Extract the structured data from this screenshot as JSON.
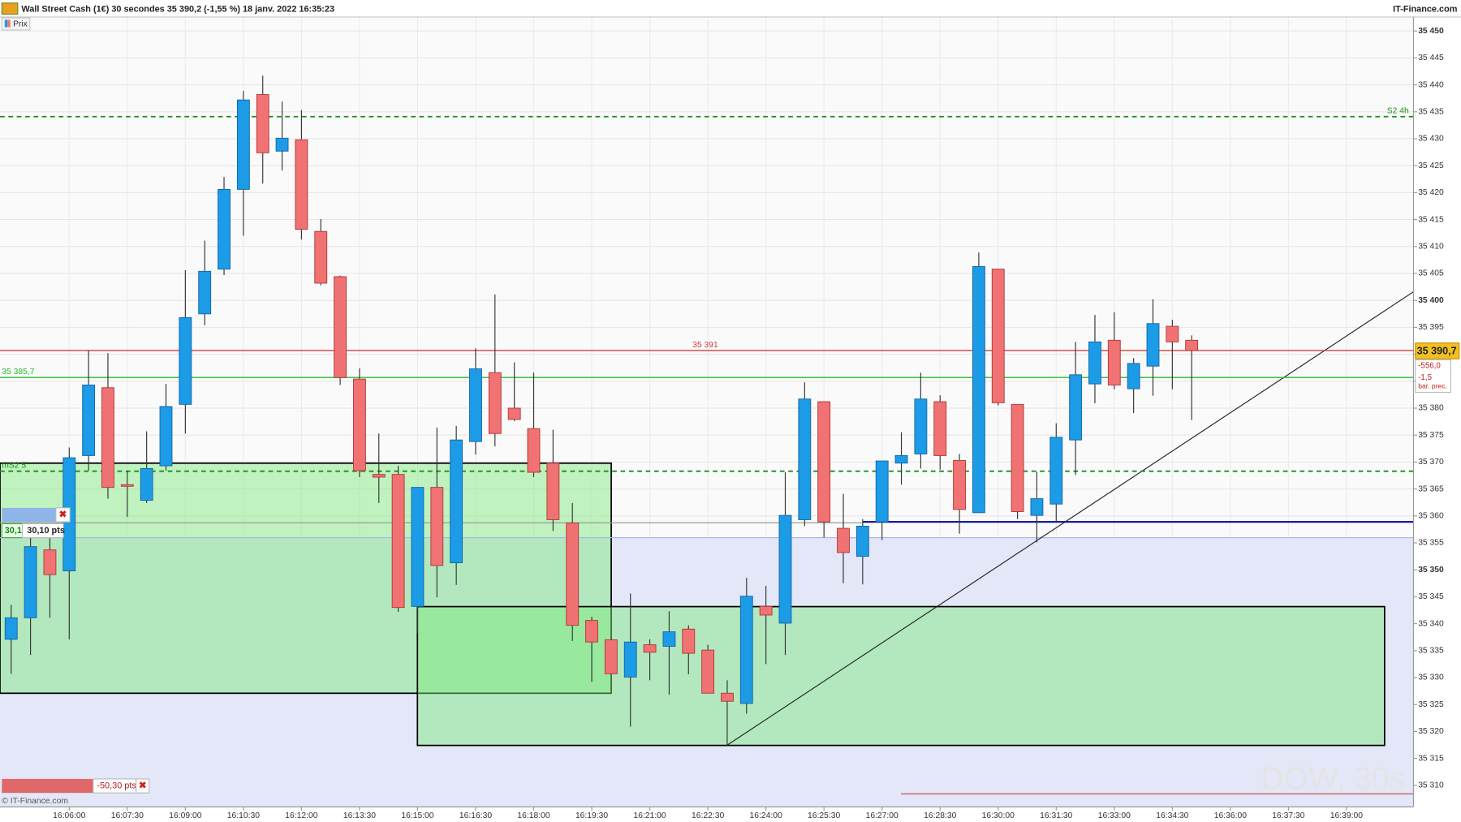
{
  "chart_data": {
    "type": "candlestick",
    "title": "Wall Street Cash (1€) 30 secondes 35 390,2 (-1,55 %) 18 janv. 2022 16:35:23",
    "source": "IT-Finance.com",
    "legend": "Prix",
    "copyright": "© IT-Finance.com",
    "watermark": "DOW, 30s",
    "up_color": "#1c9be6",
    "down_color": "#f07272",
    "grid": true,
    "categories": [
      null,
      null,
      null,
      "16:06:00",
      null,
      null,
      "16:07:30",
      null,
      null,
      "16:09:00",
      null,
      null,
      "16:10:30",
      null,
      null,
      "16:12:00",
      null,
      null,
      "16:13:30",
      null,
      null,
      "16:15:00",
      null,
      null,
      "16:16:30",
      null,
      null,
      "16:18:00",
      null,
      null,
      "16:19:30",
      null,
      null,
      "16:21:00",
      null,
      null,
      "16:22:30",
      null,
      null,
      "16:24:00",
      null,
      null,
      "16:25:30",
      null,
      null,
      "16:27:00",
      null,
      null,
      "16:28:30",
      null,
      null,
      "16:30:00",
      null,
      null,
      "16:31:30",
      null,
      null,
      "16:33:00",
      null,
      null,
      "16:34:30",
      null,
      null,
      "16:36:00",
      null,
      null,
      "16:37:30",
      null,
      null,
      "16:39:00",
      null,
      null,
      null
    ],
    "open": [
      35337.1,
      35341.1,
      35353.7,
      35349.8,
      35371.2,
      35383.8,
      35365.8,
      35362.9,
      35369.3,
      35380.7,
      35397.5,
      35405.8,
      35420.6,
      35438.2,
      35427.7,
      35429.8,
      35412.8,
      35404.4,
      35385.4,
      35367.7,
      35367.7,
      35343.2,
      35365.3,
      35351.3,
      35373.8,
      35386.6,
      35380.0,
      35376.2,
      35369.8,
      35358.7,
      35340.6,
      35337.0,
      35330.1,
      35336.1,
      35335.8,
      35339.0,
      35335.1,
      35327.1,
      35325.2,
      35343.2,
      35340.1,
      35359.3,
      35381.2,
      35357.7,
      35352.5,
      35358.9,
      35369.8,
      35371.5,
      35381.2,
      35370.3,
      35360.6,
      35405.8,
      35380.7,
      35360.1,
      35362.2,
      35374.1,
      35384.5,
      35392.6,
      35383.6,
      35387.8,
      35395.2,
      35392.6,
      null,
      null,
      null,
      null,
      null,
      null,
      null,
      null,
      null,
      null,
      null
    ],
    "high": [
      35343.5,
      35356.3,
      35357.2,
      35372.7,
      35390.7,
      35390.2,
      35368.4,
      35375.7,
      35384.5,
      35405.6,
      35411.1,
      35422.9,
      35438.9,
      35441.7,
      35436.9,
      35435.3,
      35415.1,
      35404.6,
      35387.4,
      35375.3,
      35369.3,
      35365.3,
      35376.4,
      35376.7,
      35391.1,
      35401.1,
      35388.5,
      35386.6,
      35376.0,
      35362.4,
      35341.3,
      35337.3,
      35345.6,
      35337.1,
      35342.3,
      35339.7,
      35336.1,
      35329.5,
      35348.5,
      35347.0,
      35368.1,
      35384.8,
      35381.2,
      35364.1,
      35359.4,
      35370.2,
      35375.5,
      35386.6,
      35382.4,
      35371.5,
      35408.9,
      35405.8,
      35380.7,
      35368.2,
      35377.2,
      35392.3,
      35397.3,
      35397.8,
      35389.3,
      35400.2,
      35396.4,
      35393.5,
      null,
      null,
      null,
      null,
      null,
      null,
      null,
      null,
      null,
      null,
      null
    ],
    "low": [
      35330.7,
      35334.2,
      35341.1,
      35337.1,
      35368.4,
      35363.2,
      35359.8,
      35362.4,
      35368.4,
      35375.3,
      35395.4,
      35404.7,
      35412.0,
      35421.7,
      35424.1,
      35411.3,
      35402.8,
      35384.3,
      35367.2,
      35362.4,
      35342.2,
      35338.2,
      35344.9,
      35347.2,
      35371.4,
      35372.9,
      35377.6,
      35367.2,
      35357.2,
      35336.8,
      35329.2,
      35330.7,
      35320.9,
      35329.5,
      35326.8,
      35330.6,
      35327.1,
      35317.4,
      35323.3,
      35332.5,
      35334.2,
      35358.1,
      35356.0,
      35347.5,
      35347.3,
      35355.5,
      35365.8,
      35368.8,
      35368.6,
      35356.7,
      35360.6,
      35380.5,
      35359.4,
      35355.1,
      35358.9,
      35367.6,
      35380.9,
      35383.5,
      35379.1,
      35382.3,
      35383.5,
      35377.8,
      null,
      null,
      null,
      null,
      null,
      null,
      null,
      null,
      null,
      null,
      null
    ],
    "close": [
      35341.1,
      35354.3,
      35349.1,
      35370.8,
      35384.3,
      35365.3,
      35365.5,
      35368.8,
      35380.3,
      35396.8,
      35405.4,
      35420.6,
      35437.2,
      35427.4,
      35430.1,
      35413.2,
      35403.2,
      35385.7,
      35368.4,
      35367.2,
      35343.0,
      35365.3,
      35350.8,
      35374.1,
      35387.3,
      35375.3,
      35377.9,
      35368.1,
      35359.3,
      35339.7,
      35336.6,
      35330.7,
      35336.6,
      35334.7,
      35338.5,
      35334.5,
      35327.1,
      35325.6,
      35345.1,
      35341.6,
      35360.1,
      35381.7,
      35358.9,
      35353.2,
      35358.1,
      35370.2,
      35371.2,
      35381.7,
      35371.2,
      35361.2,
      35406.3,
      35381.0,
      35360.8,
      35363.2,
      35374.6,
      35386.2,
      35392.3,
      35384.3,
      35388.3,
      35395.7,
      35392.3,
      35390.7,
      null,
      null,
      null,
      null,
      null,
      null,
      null,
      null,
      null,
      null,
      null
    ],
    "ylim": [
      35306,
      35452.6
    ],
    "yticks": [
      {
        "value": 35310,
        "label": "35 310"
      },
      {
        "value": 35315,
        "label": "35 315"
      },
      {
        "value": 35320,
        "label": "35 320"
      },
      {
        "value": 35325,
        "label": "35 325"
      },
      {
        "value": 35330,
        "label": "35 330"
      },
      {
        "value": 35335,
        "label": "35 335"
      },
      {
        "value": 35340,
        "label": "35 340"
      },
      {
        "value": 35345,
        "label": "35 345"
      },
      {
        "value": 35350,
        "label": "35 350"
      },
      {
        "value": 35355,
        "label": "35 355"
      },
      {
        "value": 35360,
        "label": "35 360"
      },
      {
        "value": 35365,
        "label": "35 365"
      },
      {
        "value": 35370,
        "label": "35 370"
      },
      {
        "value": 35375,
        "label": "35 375"
      },
      {
        "value": 35380,
        "label": "35 380"
      },
      {
        "value": 35385,
        "label": "35 385"
      },
      {
        "value": 35390,
        "label": "35 390"
      },
      {
        "value": 35395,
        "label": "35 395"
      },
      {
        "value": 35400,
        "label": "35 400"
      },
      {
        "value": 35405,
        "label": "35 405"
      },
      {
        "value": 35410,
        "label": "35 410"
      },
      {
        "value": 35415,
        "label": "35 415"
      },
      {
        "value": 35420,
        "label": "35 420"
      },
      {
        "value": 35425,
        "label": "35 425"
      },
      {
        "value": 35430,
        "label": "35 430"
      },
      {
        "value": 35435,
        "label": "35 435"
      },
      {
        "value": 35440,
        "label": "35 440"
      },
      {
        "value": 35445,
        "label": "35 445"
      },
      {
        "value": 35450,
        "label": "35 450"
      }
    ],
    "levels": [
      {
        "label": "S2 4h",
        "value": 35434.1,
        "color": "#1a8f1a",
        "dashed": true,
        "label_at": "right"
      },
      {
        "label": "35 391",
        "value": 35390.7,
        "color": "#c84040",
        "dashed": false,
        "label_at": "center"
      },
      {
        "label": "35 385,7",
        "value": 35385.7,
        "color": "#2cb82c",
        "dashed": false,
        "label_at": "left"
      },
      {
        "label": "mS2 5",
        "value": 35368.3,
        "color": "#1a8f1a",
        "dashed": true,
        "label_at": "left"
      }
    ],
    "price_tag": {
      "value": 35390.7,
      "label": "35 390,7",
      "change": "-556,0",
      "change_pct": "-1,5",
      "note": "bar. prec."
    },
    "orders": {
      "qty": "30,1",
      "gain": "30,10 pts",
      "loss": "-50,30 pts"
    }
  }
}
